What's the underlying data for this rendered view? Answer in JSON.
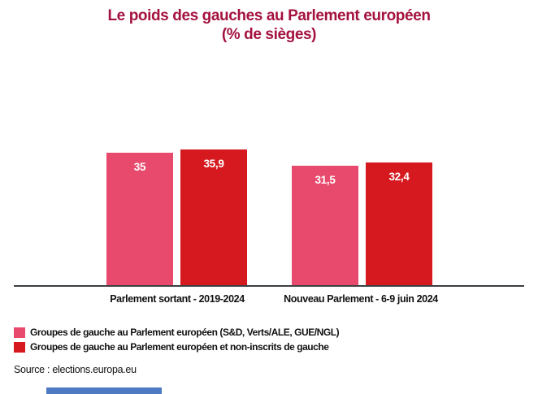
{
  "title": {
    "line1": "Le poids des gauches au Parlement européen",
    "line2": "(% de sièges)"
  },
  "chart_data": {
    "type": "bar",
    "title": "Le poids des gauches au Parlement européen (% de sièges)",
    "unit": "% de sièges",
    "categories": [
      "Parlement sortant - 2019-2024",
      "Nouveau Parlement - 6-9 juin 2024"
    ],
    "series": [
      {
        "name": "Groupes de gauche au Parlement européen (S&D, Verts/ALE, GUE/NGL)",
        "color": "#e84a6e",
        "values": [
          35,
          31.5
        ],
        "labels": [
          "35",
          "31,5"
        ]
      },
      {
        "name": "Groupes de gauche au Parlement européen et non-inscrits de gauche",
        "color": "#d6191f",
        "values": [
          35.9,
          32.4
        ],
        "labels": [
          "35,9",
          "32,4"
        ]
      }
    ],
    "ylim": [
      0,
      38
    ],
    "grid": false,
    "value_labels": "inside-top",
    "legend_position": "bottom-left"
  },
  "source": "Source : elections.europa.eu",
  "colors": {
    "title": "#a4123f",
    "axis": "#3c4043",
    "footer_bar": "#4d7ac2",
    "background": "#ffffff"
  }
}
